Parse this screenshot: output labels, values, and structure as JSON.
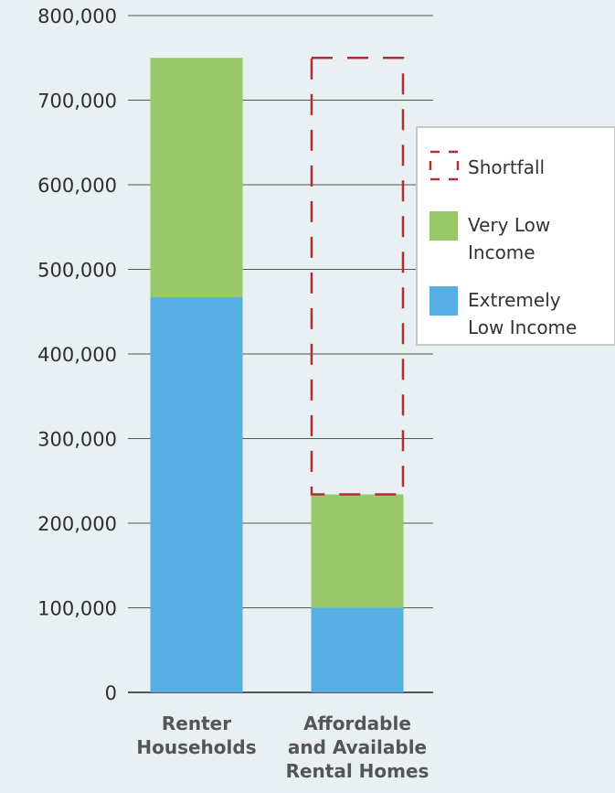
{
  "chart_data": {
    "type": "bar",
    "stacked": true,
    "categories": [
      [
        "Renter",
        "Households"
      ],
      [
        "Affordable",
        "and Available",
        "Rental Homes"
      ]
    ],
    "series": [
      {
        "name": "Extremely Low Income",
        "values": [
          467000,
          100000
        ],
        "color": "#56aee3"
      },
      {
        "name": "Very Low Income",
        "values": [
          283000,
          134000
        ],
        "color": "#99c86a"
      }
    ],
    "shortfall": {
      "name": "Shortfall",
      "category_index": 1,
      "from": 234000,
      "to": 750000,
      "color": "#b03030"
    },
    "y_ticks": [
      "0",
      "100,000",
      "200,000",
      "300,000",
      "400,000",
      "500,000",
      "600,000",
      "700,000",
      "800,000"
    ],
    "ylim": [
      0,
      800000
    ],
    "grid": true,
    "legend": {
      "position": "right",
      "items": [
        {
          "label": [
            "Shortfall"
          ],
          "kind": "dashed"
        },
        {
          "label": [
            "Very Low",
            "Income"
          ],
          "kind": "fill",
          "color": "#99c86a"
        },
        {
          "label": [
            "Extremely",
            "Low Income"
          ],
          "kind": "fill",
          "color": "#56aee3"
        }
      ]
    },
    "colors": {
      "grid": "#555555",
      "background": "#e9f0f4",
      "legend_border": "#c8c8c8",
      "legend_bg": "#ffffff"
    }
  }
}
